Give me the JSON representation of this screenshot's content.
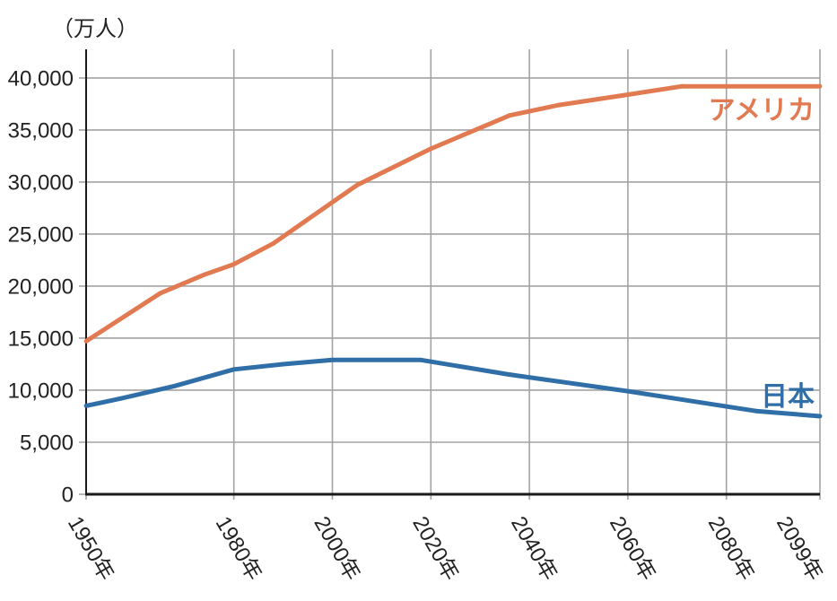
{
  "chart_data": {
    "type": "line",
    "title": "",
    "xlabel": "",
    "ylabel": "（万人）",
    "xlim": [
      1950,
      2099
    ],
    "ylim": [
      0,
      42750
    ],
    "grid": true,
    "legend": "inline-right",
    "x_ticks": [
      1950,
      1980,
      2000,
      2020,
      2040,
      2060,
      2080,
      2099
    ],
    "x_tick_labels": [
      "1950年",
      "1980年",
      "2000年",
      "2020年",
      "2040年",
      "2060年",
      "2080年",
      "2099年"
    ],
    "y_ticks": [
      0,
      5000,
      10000,
      15000,
      20000,
      25000,
      30000,
      35000,
      40000
    ],
    "y_tick_labels": [
      "0",
      "5,000",
      "10,000",
      "15,000",
      "20,000",
      "25,000",
      "30,000",
      "35,000",
      "40,000"
    ],
    "series": [
      {
        "name": "アメリカ",
        "color": "#e27a51",
        "x": [
          1950,
          1965,
          1974,
          1980,
          1988,
          2005,
          2020,
          2036,
          2046,
          2060,
          2071,
          2099
        ],
        "values": [
          14700,
          19300,
          21100,
          22100,
          24100,
          29700,
          33200,
          36400,
          37400,
          38400,
          39200,
          39200
        ]
      },
      {
        "name": "日本",
        "color": "#2f6ea6",
        "x": [
          1950,
          1957,
          1968,
          1980,
          1990,
          2000,
          2018,
          2036,
          2060,
          2086,
          2099
        ],
        "values": [
          8500,
          9200,
          10400,
          12000,
          12500,
          12900,
          12900,
          11500,
          9900,
          8000,
          7500
        ]
      }
    ]
  }
}
